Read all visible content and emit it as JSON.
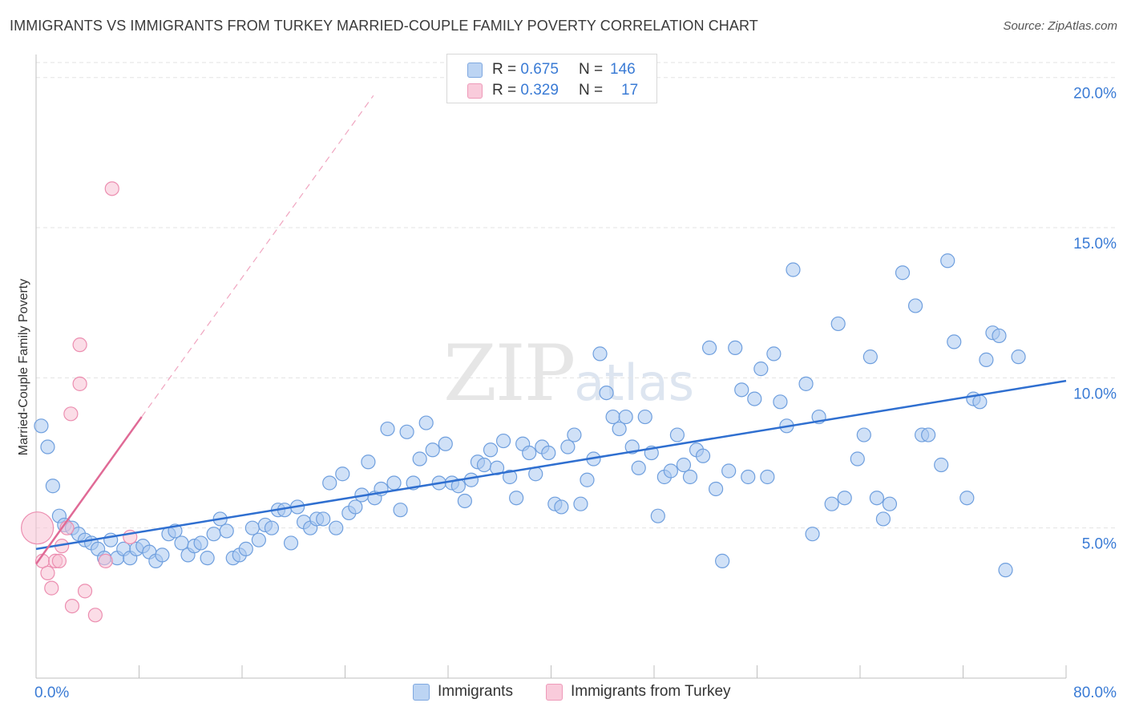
{
  "header": {
    "title": "IMMIGRANTS VS IMMIGRANTS FROM TURKEY MARRIED-COUPLE FAMILY POVERTY CORRELATION CHART",
    "source": "Source: ZipAtlas.com"
  },
  "watermark": {
    "zip": "ZIP",
    "atlas": "atlas"
  },
  "colors": {
    "blue_fill": "#a9c8f0",
    "blue_stroke": "#6f9fde",
    "blue_line": "#2f6fd0",
    "pink_fill": "#f7c1d3",
    "pink_stroke": "#ec8eb0",
    "pink_line": "#e06a96",
    "grid": "#e3e3e3",
    "axis_text": "#3a7bd5"
  },
  "legend_top": [
    {
      "r_label": "R =",
      "r_value": "0.675",
      "n_label": "N =",
      "n_value": "146"
    },
    {
      "r_label": "R =",
      "r_value": "0.329",
      "n_label": "N =",
      "n_value": "17"
    }
  ],
  "legend_bottom": [
    "Immigrants",
    "Immigrants from Turkey"
  ],
  "chart_data": {
    "type": "scatter",
    "title": "IMMIGRANTS VS IMMIGRANTS FROM TURKEY MARRIED-COUPLE FAMILY POVERTY CORRELATION CHART",
    "xlabel": "",
    "ylabel": "Married-Couple Family Poverty",
    "xlim": [
      0,
      80
    ],
    "ylim": [
      0,
      20.5
    ],
    "x_tick_labels": [
      "0.0%",
      "80.0%"
    ],
    "y_ticks": [
      5,
      10,
      15,
      20
    ],
    "y_tick_labels": [
      "5.0%",
      "10.0%",
      "15.0%",
      "20.0%"
    ],
    "grid": true,
    "legend_position": "top-center",
    "series": [
      {
        "name": "Immigrants",
        "r": 0.675,
        "n": 146,
        "trend": {
          "x0": 0,
          "y0": 4.3,
          "x1": 80,
          "y1": 9.9
        },
        "points": [
          [
            0.4,
            8.4
          ],
          [
            0.9,
            7.7
          ],
          [
            1.3,
            6.4
          ],
          [
            1.8,
            5.4
          ],
          [
            2.2,
            5.1
          ],
          [
            2.8,
            5.0
          ],
          [
            3.3,
            4.8
          ],
          [
            3.8,
            4.6
          ],
          [
            4.3,
            4.5
          ],
          [
            4.8,
            4.3
          ],
          [
            5.3,
            4.0
          ],
          [
            5.8,
            4.6
          ],
          [
            6.3,
            4.0
          ],
          [
            6.8,
            4.3
          ],
          [
            7.3,
            4.0
          ],
          [
            7.8,
            4.3
          ],
          [
            8.3,
            4.4
          ],
          [
            8.8,
            4.2
          ],
          [
            9.3,
            3.9
          ],
          [
            9.8,
            4.1
          ],
          [
            10.3,
            4.8
          ],
          [
            10.8,
            4.9
          ],
          [
            11.3,
            4.5
          ],
          [
            11.8,
            4.1
          ],
          [
            12.3,
            4.4
          ],
          [
            12.8,
            4.5
          ],
          [
            13.3,
            4.0
          ],
          [
            13.8,
            4.8
          ],
          [
            14.3,
            5.3
          ],
          [
            14.8,
            4.9
          ],
          [
            15.3,
            4.0
          ],
          [
            15.8,
            4.1
          ],
          [
            16.3,
            4.3
          ],
          [
            16.8,
            5.0
          ],
          [
            17.3,
            4.6
          ],
          [
            17.8,
            5.1
          ],
          [
            18.3,
            5.0
          ],
          [
            18.8,
            5.6
          ],
          [
            19.3,
            5.6
          ],
          [
            19.8,
            4.5
          ],
          [
            20.3,
            5.7
          ],
          [
            20.8,
            5.2
          ],
          [
            21.3,
            5.0
          ],
          [
            21.8,
            5.3
          ],
          [
            22.3,
            5.3
          ],
          [
            22.8,
            6.5
          ],
          [
            23.3,
            5.0
          ],
          [
            23.8,
            6.8
          ],
          [
            24.3,
            5.5
          ],
          [
            24.8,
            5.7
          ],
          [
            25.3,
            6.1
          ],
          [
            25.8,
            7.2
          ],
          [
            26.3,
            6.0
          ],
          [
            26.8,
            6.3
          ],
          [
            27.3,
            8.3
          ],
          [
            27.8,
            6.5
          ],
          [
            28.3,
            5.6
          ],
          [
            28.8,
            8.2
          ],
          [
            29.3,
            6.5
          ],
          [
            29.8,
            7.3
          ],
          [
            30.3,
            8.5
          ],
          [
            30.8,
            7.6
          ],
          [
            31.3,
            6.5
          ],
          [
            31.8,
            7.8
          ],
          [
            32.3,
            6.5
          ],
          [
            32.8,
            6.4
          ],
          [
            33.3,
            5.9
          ],
          [
            33.8,
            6.6
          ],
          [
            34.3,
            7.2
          ],
          [
            34.8,
            7.1
          ],
          [
            35.3,
            7.6
          ],
          [
            35.8,
            7.0
          ],
          [
            36.3,
            7.9
          ],
          [
            36.8,
            6.7
          ],
          [
            37.3,
            6.0
          ],
          [
            37.8,
            7.8
          ],
          [
            38.3,
            7.5
          ],
          [
            38.8,
            6.8
          ],
          [
            39.3,
            7.7
          ],
          [
            39.8,
            7.5
          ],
          [
            40.3,
            5.8
          ],
          [
            40.8,
            5.7
          ],
          [
            41.3,
            7.7
          ],
          [
            41.8,
            8.1
          ],
          [
            42.3,
            5.8
          ],
          [
            42.8,
            6.6
          ],
          [
            43.3,
            7.3
          ],
          [
            43.8,
            10.8
          ],
          [
            44.3,
            9.5
          ],
          [
            44.8,
            8.7
          ],
          [
            45.3,
            8.3
          ],
          [
            45.8,
            8.7
          ],
          [
            46.3,
            7.7
          ],
          [
            46.8,
            7.0
          ],
          [
            47.3,
            8.7
          ],
          [
            47.8,
            7.5
          ],
          [
            48.3,
            5.4
          ],
          [
            48.8,
            6.7
          ],
          [
            49.3,
            6.9
          ],
          [
            49.8,
            8.1
          ],
          [
            50.3,
            7.1
          ],
          [
            50.8,
            6.7
          ],
          [
            51.3,
            7.6
          ],
          [
            51.8,
            7.4
          ],
          [
            52.3,
            11.0
          ],
          [
            52.8,
            6.3
          ],
          [
            53.3,
            3.9
          ],
          [
            53.8,
            6.9
          ],
          [
            54.3,
            11.0
          ],
          [
            54.8,
            9.6
          ],
          [
            55.3,
            6.7
          ],
          [
            55.8,
            9.3
          ],
          [
            56.3,
            10.3
          ],
          [
            56.8,
            6.7
          ],
          [
            57.3,
            10.8
          ],
          [
            57.8,
            9.2
          ],
          [
            58.3,
            8.4
          ],
          [
            58.8,
            13.6
          ],
          [
            59.8,
            9.8
          ],
          [
            60.3,
            4.8
          ],
          [
            60.8,
            8.7
          ],
          [
            61.8,
            5.8
          ],
          [
            62.3,
            11.8
          ],
          [
            62.8,
            6.0
          ],
          [
            63.8,
            7.3
          ],
          [
            64.3,
            8.1
          ],
          [
            64.8,
            10.7
          ],
          [
            65.3,
            6.0
          ],
          [
            65.8,
            5.3
          ],
          [
            66.3,
            5.8
          ],
          [
            67.3,
            13.5
          ],
          [
            68.3,
            12.4
          ],
          [
            68.8,
            8.1
          ],
          [
            69.3,
            8.1
          ],
          [
            70.3,
            7.1
          ],
          [
            70.8,
            13.9
          ],
          [
            71.3,
            11.2
          ],
          [
            72.3,
            6.0
          ],
          [
            72.8,
            9.3
          ],
          [
            73.3,
            9.2
          ],
          [
            73.8,
            10.6
          ],
          [
            74.3,
            11.5
          ],
          [
            74.8,
            11.4
          ],
          [
            75.3,
            3.6
          ],
          [
            76.3,
            10.7
          ]
        ]
      },
      {
        "name": "Immigrants from Turkey",
        "r": 0.329,
        "n": 17,
        "trend": {
          "x0": 0,
          "y0": 3.8,
          "x1": 8.2,
          "y1": 8.7,
          "dash_x1": 26.2,
          "dash_y1": 19.4
        },
        "points": [
          [
            0.1,
            5.0
          ],
          [
            0.5,
            3.9
          ],
          [
            0.9,
            3.5
          ],
          [
            1.2,
            3.0
          ],
          [
            1.5,
            3.9
          ],
          [
            1.8,
            3.9
          ],
          [
            2.0,
            4.4
          ],
          [
            2.4,
            5.0
          ],
          [
            2.8,
            2.4
          ],
          [
            3.4,
            11.1
          ],
          [
            3.4,
            9.8
          ],
          [
            2.7,
            8.8
          ],
          [
            3.8,
            2.9
          ],
          [
            4.6,
            2.1
          ],
          [
            5.4,
            3.9
          ],
          [
            5.9,
            16.3
          ],
          [
            7.3,
            4.7
          ]
        ]
      }
    ]
  }
}
